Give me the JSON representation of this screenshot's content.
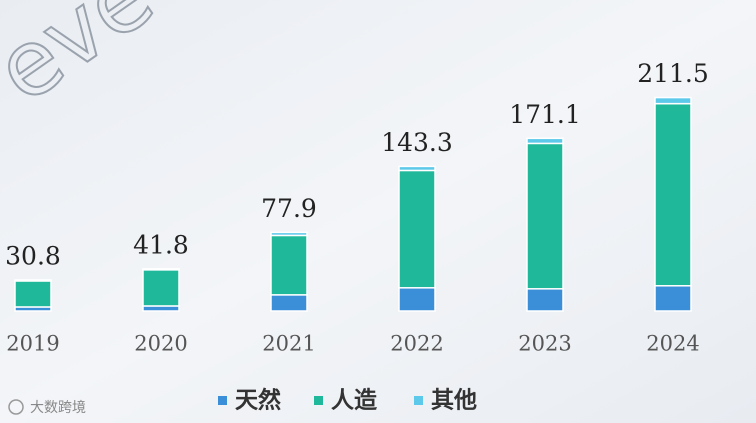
{
  "chart_data": {
    "type": "stacked_bar",
    "watermark": "eve",
    "source": "大数跨境",
    "categories": [
      "2019",
      "2020",
      "2021",
      "2022",
      "2023",
      "2024"
    ],
    "series": [
      {
        "name": "天然",
        "color": "#3b8fd8",
        "values": [
          4,
          5,
          16,
          23,
          22,
          25
        ]
      },
      {
        "name": "人造",
        "color": "#1fb89b",
        "values": [
          25.8,
          35.8,
          58.9,
          116.3,
          144.1,
          180.5
        ]
      },
      {
        "name": "其他",
        "color": "#5cc8ea",
        "values": [
          1,
          1,
          3,
          4,
          5,
          6
        ]
      }
    ],
    "totals": [
      30.8,
      41.8,
      77.9,
      143.3,
      171.1,
      211.5
    ],
    "ylim": [
      0,
      220
    ]
  }
}
